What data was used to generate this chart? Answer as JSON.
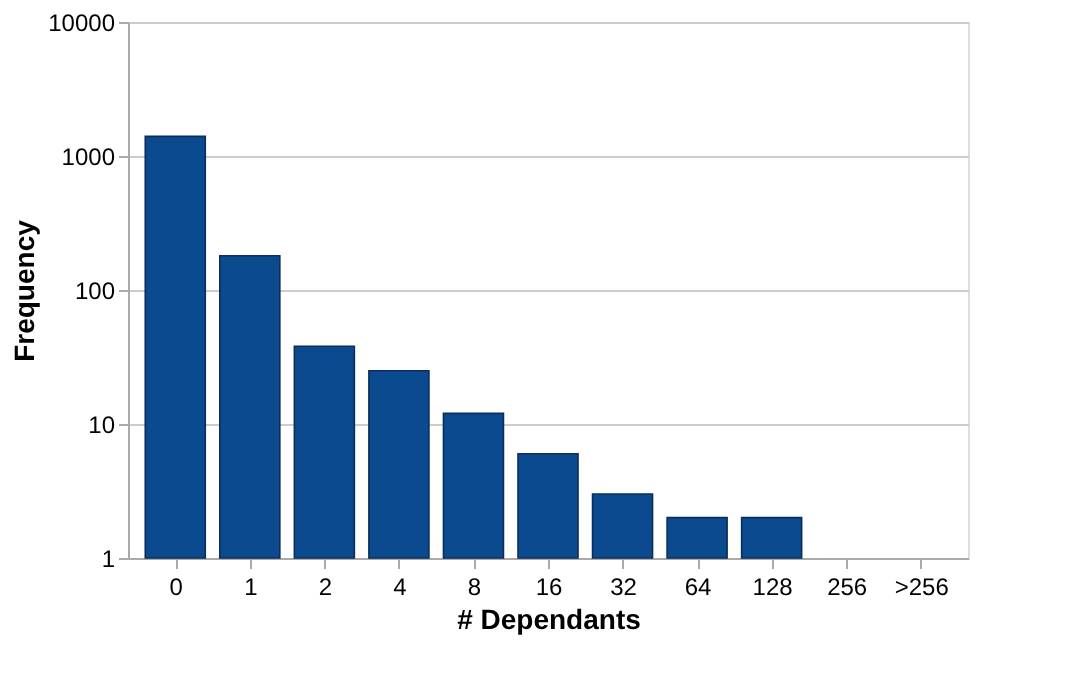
{
  "chart_data": {
    "type": "bar",
    "xlabel": "# Dependants",
    "ylabel": "Frequency",
    "categories": [
      "0",
      "1",
      "2",
      "4",
      "8",
      "16",
      "32",
      "64",
      "128",
      "256",
      ">256"
    ],
    "values": [
      1400,
      180,
      38,
      25,
      12,
      6,
      3,
      2,
      2,
      null,
      null
    ],
    "color": "#0b4a8f",
    "log": "y",
    "ylim": [
      1,
      10000
    ],
    "yticks": [
      1,
      10,
      100,
      1000,
      10000
    ],
    "grid": "y"
  }
}
